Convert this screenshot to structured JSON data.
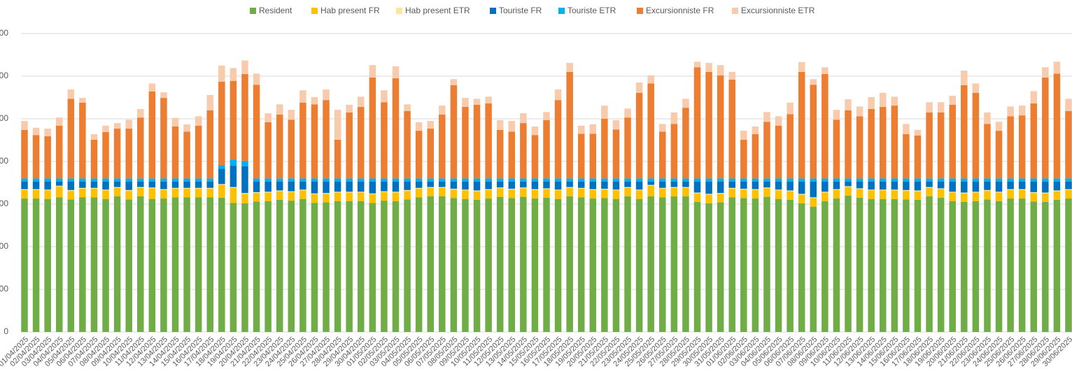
{
  "chart_data": {
    "type": "stacked_bar",
    "categories": [
      "01/04/2025",
      "02/04/2025",
      "03/04/2025",
      "04/04/2025",
      "05/04/2025",
      "06/04/2025",
      "07/04/2025",
      "08/04/2025",
      "09/04/2025",
      "10/04/2025",
      "11/04/2025",
      "12/04/2025",
      "13/04/2025",
      "14/04/2025",
      "15/04/2025",
      "16/04/2025",
      "17/04/2025",
      "18/04/2025",
      "19/04/2025",
      "20/04/2025",
      "21/04/2025",
      "22/04/2025",
      "23/04/2025",
      "24/04/2025",
      "25/04/2025",
      "26/04/2025",
      "27/04/2025",
      "28/04/2025",
      "29/04/2025",
      "30/04/2025",
      "01/05/2025",
      "02/05/2025",
      "03/05/2025",
      "04/05/2025",
      "05/05/2025",
      "06/05/2025",
      "07/05/2025",
      "08/05/2025",
      "09/05/2025",
      "10/05/2025",
      "11/05/2025",
      "12/05/2025",
      "13/05/2025",
      "14/05/2025",
      "15/05/2025",
      "16/05/2025",
      "17/05/2025",
      "18/05/2025",
      "19/05/2025",
      "20/05/2025",
      "21/05/2025",
      "22/05/2025",
      "23/05/2025",
      "24/05/2025",
      "25/05/2025",
      "26/05/2025",
      "27/05/2025",
      "28/05/2025",
      "29/05/2025",
      "30/05/2025",
      "31/05/2025",
      "01/06/2025",
      "02/06/2025",
      "03/06/2025",
      "04/06/2025",
      "05/06/2025",
      "06/06/2025",
      "07/06/2025",
      "08/06/2025",
      "09/06/2025",
      "10/06/2025",
      "11/06/2025",
      "12/06/2025",
      "13/06/2025",
      "14/06/2025",
      "15/06/2025",
      "16/06/2025",
      "17/06/2025",
      "18/06/2025",
      "19/06/2025",
      "20/06/2025",
      "21/06/2025",
      "22/06/2025",
      "23/06/2025",
      "24/06/2025",
      "25/06/2025",
      "26/06/2025",
      "27/06/2025",
      "28/06/2025",
      "29/06/2025",
      "30/06/2025"
    ],
    "series": [
      {
        "name": "Resident",
        "color": "#70ad47",
        "values": [
          313,
          313,
          312,
          316,
          311,
          316,
          316,
          312,
          318,
          311,
          318,
          312,
          313,
          316,
          316,
          316,
          316,
          315,
          303,
          302,
          306,
          307,
          310,
          308,
          312,
          303,
          304,
          307,
          307,
          307,
          303,
          308,
          307,
          311,
          316,
          318,
          318,
          314,
          312,
          310,
          313,
          317,
          314,
          317,
          313,
          315,
          312,
          318,
          316,
          313,
          314,
          312,
          318,
          312,
          318,
          316,
          318,
          318,
          305,
          302,
          304,
          316,
          314,
          313,
          317,
          312,
          310,
          302,
          294,
          307,
          313,
          320,
          315,
          312,
          312,
          312,
          311,
          310,
          318,
          315,
          307,
          305,
          307,
          311,
          307,
          313,
          313,
          306,
          305,
          310,
          313
        ]
      },
      {
        "name": "Hab present FR",
        "color": "#ffc000",
        "values": [
          20,
          20,
          20,
          25,
          20,
          20,
          20,
          20,
          20,
          20,
          20,
          25,
          20,
          20,
          20,
          20,
          20,
          30,
          35,
          22,
          20,
          20,
          20,
          20,
          20,
          20,
          20,
          20,
          20,
          20,
          20,
          20,
          20,
          20,
          20,
          20,
          20,
          20,
          20,
          20,
          20,
          20,
          20,
          20,
          20,
          20,
          20,
          20,
          20,
          20,
          20,
          20,
          20,
          20,
          25,
          20,
          20,
          20,
          20,
          20,
          20,
          20,
          20,
          20,
          20,
          20,
          20,
          20,
          20,
          20,
          20,
          20,
          20,
          20,
          20,
          20,
          20,
          20,
          20,
          20,
          20,
          20,
          20,
          20,
          20,
          20,
          20,
          20,
          20,
          20,
          20
        ]
      },
      {
        "name": "Hab present ETR",
        "color": "#ffe699",
        "values": [
          2,
          2,
          2,
          2,
          2,
          2,
          2,
          2,
          2,
          2,
          2,
          2,
          2,
          2,
          2,
          2,
          2,
          2,
          2,
          2,
          2,
          2,
          2,
          2,
          2,
          2,
          2,
          2,
          2,
          2,
          2,
          2,
          2,
          2,
          2,
          2,
          2,
          2,
          2,
          2,
          2,
          2,
          2,
          2,
          2,
          2,
          2,
          2,
          2,
          2,
          2,
          2,
          2,
          2,
          2,
          2,
          2,
          2,
          2,
          2,
          2,
          2,
          2,
          2,
          2,
          2,
          2,
          2,
          2,
          2,
          2,
          2,
          2,
          2,
          2,
          2,
          2,
          2,
          2,
          2,
          2,
          2,
          2,
          2,
          2,
          2,
          2,
          2,
          2,
          2,
          2
        ]
      },
      {
        "name": "Touriste FR",
        "color": "#0070c0",
        "values": [
          18,
          18,
          19,
          10,
          20,
          15,
          15,
          19,
          13,
          20,
          13,
          14,
          18,
          15,
          15,
          15,
          15,
          36,
          50,
          63,
          25,
          24,
          21,
          23,
          19,
          28,
          27,
          24,
          24,
          24,
          28,
          23,
          24,
          20,
          15,
          13,
          13,
          17,
          19,
          21,
          18,
          14,
          17,
          14,
          18,
          16,
          19,
          13,
          15,
          18,
          17,
          19,
          13,
          19,
          8,
          15,
          13,
          13,
          26,
          29,
          27,
          15,
          17,
          18,
          14,
          19,
          21,
          29,
          37,
          24,
          18,
          11,
          16,
          19,
          19,
          19,
          20,
          21,
          13,
          16,
          24,
          26,
          24,
          20,
          24,
          18,
          18,
          25,
          26,
          21,
          18
        ]
      },
      {
        "name": "Touriste ETR",
        "color": "#00b0f0",
        "values": [
          7,
          7,
          7,
          7,
          7,
          7,
          7,
          7,
          7,
          7,
          7,
          7,
          7,
          7,
          7,
          7,
          7,
          8,
          14,
          12,
          7,
          7,
          7,
          7,
          7,
          7,
          7,
          7,
          7,
          7,
          7,
          7,
          7,
          7,
          7,
          7,
          7,
          7,
          7,
          7,
          7,
          7,
          7,
          7,
          7,
          7,
          7,
          7,
          7,
          7,
          7,
          7,
          7,
          7,
          7,
          7,
          7,
          7,
          7,
          7,
          7,
          7,
          7,
          7,
          7,
          7,
          7,
          7,
          7,
          7,
          7,
          7,
          7,
          7,
          7,
          7,
          7,
          7,
          7,
          7,
          7,
          7,
          7,
          7,
          7,
          7,
          7,
          7,
          7,
          7,
          7
        ]
      },
      {
        "name": "Excursionniste FR",
        "color": "#ed7d31",
        "values": [
          114,
          102,
          99,
          124,
          187,
          178,
          91,
          109,
          117,
          117,
          143,
          204,
          189,
          122,
          110,
          124,
          160,
          196,
          185,
          204,
          220,
          132,
          150,
          138,
          178,
          174,
          184,
          91,
          155,
          168,
          237,
          179,
          235,
          158,
          112,
          117,
          150,
          219,
          168,
          173,
          176,
          114,
          110,
          130,
          102,
          137,
          184,
          250,
          105,
          105,
          140,
          115,
          143,
          201,
          223,
          110,
          128,
          166,
          261,
          250,
          242,
          232,
          91,
          104,
          133,
          124,
          151,
          250,
          220,
          245,
          138,
          160,
          146,
          163,
          168,
          171,
          104,
          101,
          155,
          155,
          173,
          219,
          201,
          128,
          112,
          146,
          148,
          176,
          237,
          246,
          158
        ]
      },
      {
        "name": "Excursionniste ETR",
        "color": "#f8cbad",
        "values": [
          21,
          17,
          18,
          19,
          22,
          11,
          13,
          15,
          13,
          21,
          20,
          19,
          13,
          20,
          17,
          22,
          36,
          38,
          30,
          32,
          26,
          21,
          24,
          23,
          29,
          17,
          25,
          70,
          18,
          24,
          29,
          28,
          28,
          16,
          20,
          18,
          21,
          14,
          21,
          14,
          16,
          23,
          25,
          23,
          20,
          19,
          25,
          21,
          19,
          22,
          31,
          22,
          21,
          24,
          19,
          18,
          27,
          21,
          13,
          21,
          24,
          18,
          21,
          18,
          23,
          22,
          27,
          23,
          13,
          16,
          23,
          26,
          23,
          28,
          33,
          21,
          24,
          13,
          24,
          24,
          21,
          34,
          22,
          27,
          21,
          23,
          23,
          29,
          24,
          28,
          29
        ]
      }
    ],
    "ylim": [
      0,
      700
    ],
    "yticks": [
      0,
      {
        "value": 100,
        "label": "00"
      },
      {
        "value": 200,
        "label": "00"
      },
      {
        "value": 300,
        "label": "00"
      },
      {
        "value": 400,
        "label": "00"
      },
      {
        "value": 500,
        "label": "00"
      },
      {
        "value": 600,
        "label": "00"
      },
      {
        "value": 700,
        "label": "00"
      }
    ],
    "grid": true,
    "legend": "top"
  }
}
